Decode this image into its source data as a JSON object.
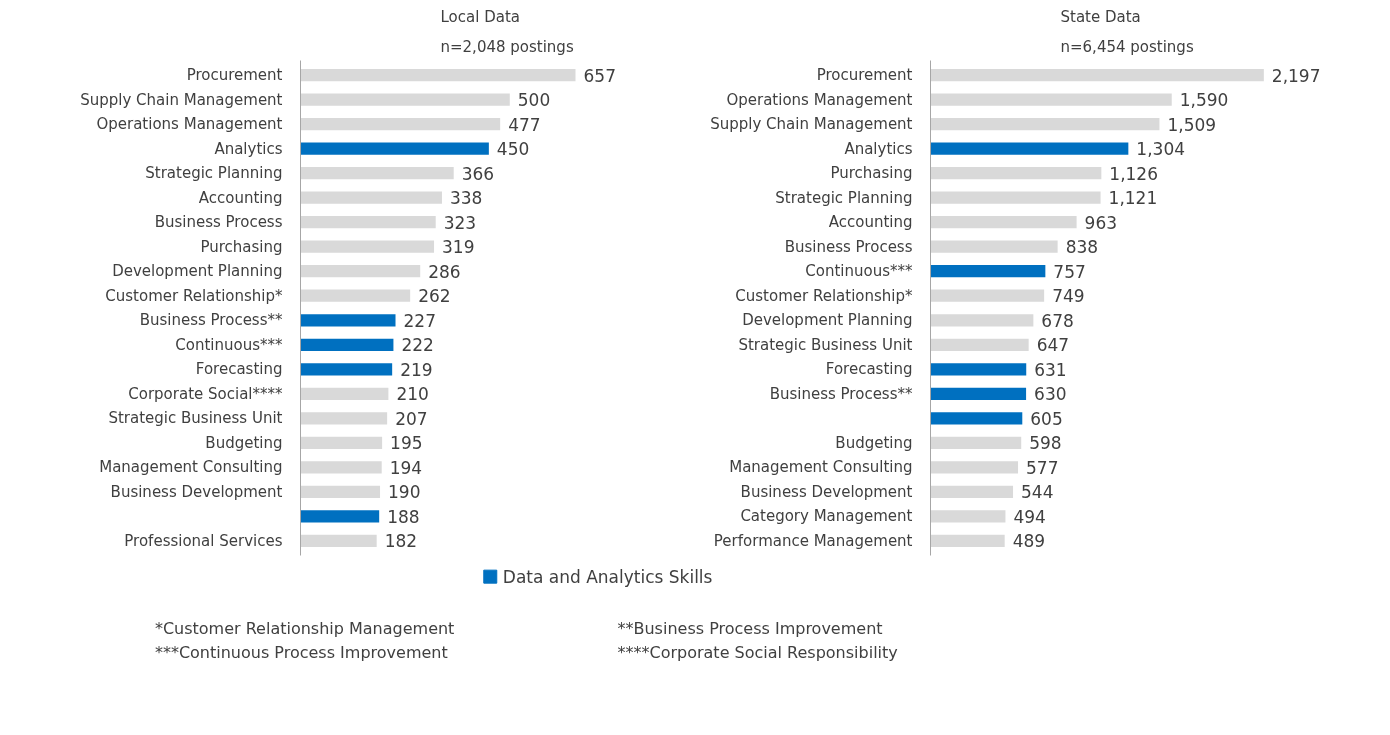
{
  "chart_data": [
    {
      "type": "bar",
      "orientation": "horizontal",
      "data_labels": true,
      "legend": "bottom",
      "title": "Local Data",
      "subtitle": "n=2,048 postings",
      "categories": [
        "Procurement",
        "Supply Chain Management",
        "Operations Management",
        "Analytics",
        "Strategic Planning",
        "Accounting",
        "Business Process",
        "Purchasing",
        "Development Planning",
        "Customer Relationship*",
        "Business Process**",
        "Continuous***",
        "Forecasting",
        "Corporate Social****",
        "Strategic Business Unit",
        "Budgeting",
        "Management Consulting",
        "Business Development",
        null,
        "Professional Services"
      ],
      "series": [
        {
          "name": "Data and Analytics Skills",
          "color": "#0070c0",
          "values": [
            null,
            null,
            null,
            450,
            null,
            null,
            null,
            null,
            null,
            null,
            227,
            222,
            219,
            null,
            null,
            null,
            null,
            null,
            188,
            null
          ]
        },
        {
          "color": "#d9d9d9",
          "values": [
            657,
            500,
            477,
            null,
            366,
            338,
            323,
            319,
            286,
            262,
            null,
            null,
            null,
            210,
            207,
            195,
            194,
            190,
            null,
            182
          ]
        }
      ],
      "annotations": [
        "*Customer Relationship Management",
        "**Business Process Improvement",
        "***Continuous Process Improvement",
        "****Corporate Social Responsibility"
      ]
    },
    {
      "type": "bar",
      "orientation": "horizontal",
      "legend": "bottom",
      "title": "State Data",
      "subtitle": "n=6,454 postings",
      "categories": [
        "Procurement",
        "Operations Management",
        "Supply Chain Management",
        "Analytics",
        "Purchasing",
        "Strategic Planning",
        "Accounting",
        "Business Process",
        "Continuous***",
        "Customer Relationship*",
        "Development Planning",
        "Strategic Business Unit",
        "Forecasting",
        "Business Process**",
        null,
        "Budgeting",
        "Management Consulting",
        "Business Development",
        "Category Management",
        "Performance Management"
      ],
      "series": [
        {
          "name": "Data and Analytics Skills",
          "color": "#0070c0",
          "values": [
            null,
            null,
            null,
            1304,
            null,
            null,
            null,
            null,
            757,
            null,
            null,
            null,
            631,
            630,
            605,
            null,
            null,
            null,
            null,
            null
          ],
          "value_labels": [
            null,
            null,
            null,
            "1,304",
            null,
            null,
            null,
            null,
            "757",
            null,
            null,
            null,
            "631",
            "630",
            "605",
            null,
            null,
            null,
            null,
            null
          ]
        },
        {
          "color": "#d9d9d9",
          "values": [
            2197,
            1590,
            1509,
            null,
            1126,
            1121,
            963,
            838,
            null,
            749,
            678,
            647,
            null,
            null,
            null,
            598,
            577,
            544,
            494,
            489
          ],
          "value_labels": [
            "2,197",
            "1,590",
            "1,509",
            null,
            "1,126",
            "1,121",
            "963",
            "838",
            null,
            "749",
            "678",
            "647",
            null,
            null,
            null,
            "598",
            "577",
            "544",
            "494",
            "489"
          ]
        }
      ]
    }
  ]
}
